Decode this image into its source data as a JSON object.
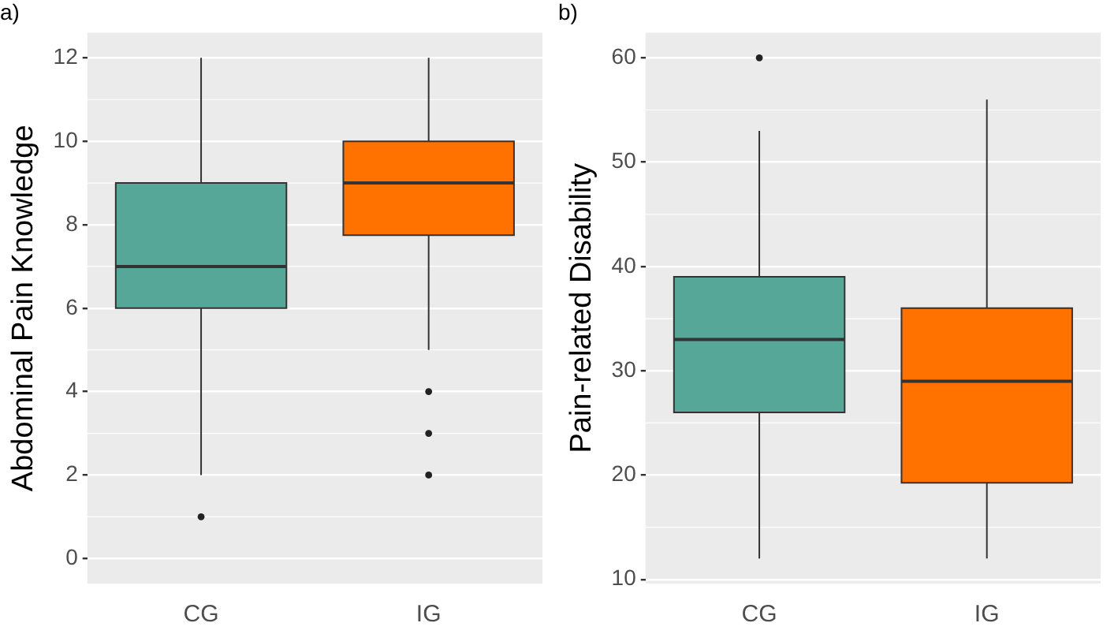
{
  "chart_data": [
    {
      "type": "box",
      "title": "a)",
      "ylabel": "Abdominal Pain Knowledge",
      "categories": [
        "CG",
        "IG"
      ],
      "colors": [
        "#56a797",
        "#ff7200"
      ],
      "boxes": [
        {
          "low": 2,
          "q1": 6,
          "median": 7,
          "q3": 9,
          "high": 12,
          "outliers": [
            1
          ]
        },
        {
          "low": 5,
          "q1": 7.75,
          "median": 9,
          "q3": 10,
          "high": 12,
          "outliers": [
            4,
            3,
            2
          ]
        }
      ],
      "ylim": [
        -0.6,
        12.6
      ],
      "yticks": [
        0,
        2,
        4,
        6,
        8,
        10,
        12
      ],
      "grid": "y"
    },
    {
      "type": "box",
      "title": "b)",
      "ylabel": "Pain-related Disability",
      "categories": [
        "CG",
        "IG"
      ],
      "colors": [
        "#56a797",
        "#ff7200"
      ],
      "boxes": [
        {
          "low": 12,
          "q1": 26,
          "median": 33,
          "q3": 39,
          "high": 53,
          "outliers": [
            60
          ]
        },
        {
          "low": 12,
          "q1": 19.25,
          "median": 29,
          "q3": 36,
          "high": 56
        }
      ],
      "ylim": [
        9.6,
        62.4
      ],
      "yticks": [
        10,
        20,
        30,
        40,
        50,
        60
      ],
      "grid": "y"
    }
  ]
}
